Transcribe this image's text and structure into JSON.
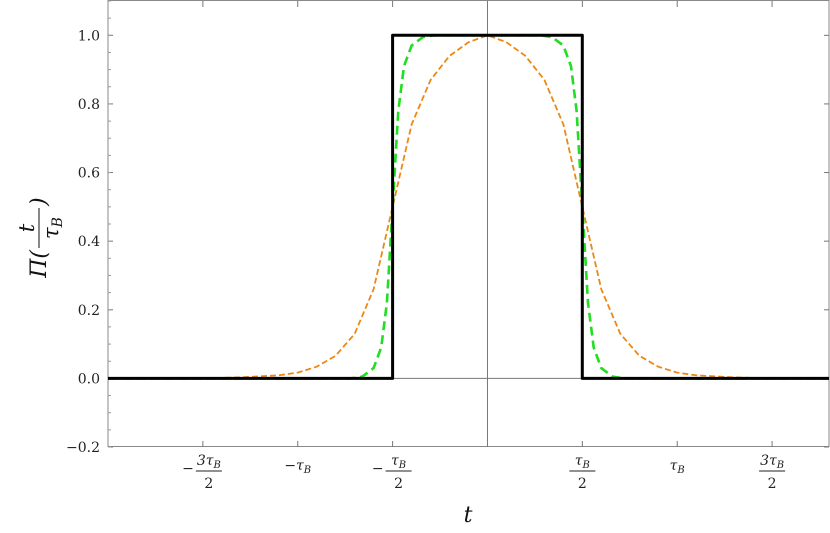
{
  "chart_data": {
    "type": "line",
    "title": "",
    "xlabel": "t",
    "ylabel": "Π(t/τ_B)",
    "ylabel_parts": {
      "prefix": "Π(",
      "numerator": "t",
      "denominator": "τ",
      "denominator_sub": "B",
      "suffix": ")"
    },
    "xlim": [
      -2.0,
      1.8
    ],
    "ylim": [
      -0.2,
      1.1
    ],
    "grid": false,
    "legend": "none",
    "x_ticks": [
      {
        "value": -1.5,
        "sign": "−",
        "num": "3τ",
        "sub": "B",
        "den": "2"
      },
      {
        "value": -1.0,
        "sign": "−",
        "text": "τ",
        "sub": "B"
      },
      {
        "value": -0.5,
        "sign": "−",
        "num": "τ",
        "sub": "B",
        "den": "2"
      },
      {
        "value": 0.5,
        "sign": "",
        "num": "τ",
        "sub": "B",
        "den": "2"
      },
      {
        "value": 1.0,
        "sign": "",
        "text": "τ",
        "sub": "B"
      },
      {
        "value": 1.5,
        "sign": "",
        "num": "3τ",
        "sub": "B",
        "den": "2"
      }
    ],
    "y_ticks": [
      "−0.2",
      "0.0",
      "0.2",
      "0.4",
      "0.6",
      "0.8",
      "1.0"
    ],
    "y_tick_values": [
      -0.2,
      0.0,
      0.2,
      0.4,
      0.6,
      0.8,
      1.0
    ],
    "series": [
      {
        "style": "solid",
        "color": "#000000",
        "x": [
          -2.0,
          -0.5,
          -0.5,
          0.5,
          0.5,
          1.8
        ],
        "y": [
          0,
          0,
          1,
          1,
          0,
          0
        ]
      },
      {
        "style": "dashed",
        "color": "#22dd22",
        "x": [
          -2.0,
          -0.72,
          -0.66,
          -0.6,
          -0.56,
          -0.53,
          -0.5,
          -0.47,
          -0.44,
          -0.4,
          -0.34,
          -0.28,
          0.28,
          0.34,
          0.4,
          0.44,
          0.47,
          0.5,
          0.53,
          0.56,
          0.6,
          0.66,
          0.72,
          1.8
        ],
        "y": [
          0,
          0,
          0.005,
          0.03,
          0.09,
          0.22,
          0.5,
          0.78,
          0.91,
          0.97,
          0.995,
          1,
          1,
          0.995,
          0.97,
          0.91,
          0.78,
          0.5,
          0.22,
          0.09,
          0.03,
          0.005,
          0,
          0
        ]
      },
      {
        "style": "dashed",
        "color": "#ee8811",
        "x": [
          -2.0,
          -1.5,
          -1.3,
          -1.1,
          -1.0,
          -0.9,
          -0.8,
          -0.7,
          -0.6,
          -0.5,
          -0.4,
          -0.3,
          -0.2,
          -0.1,
          0.0,
          0.1,
          0.2,
          0.3,
          0.4,
          0.5,
          0.6,
          0.7,
          0.8,
          0.9,
          1.0,
          1.1,
          1.3,
          1.5,
          1.8
        ],
        "y": [
          0,
          0.0,
          0.003,
          0.009,
          0.017,
          0.034,
          0.066,
          0.13,
          0.26,
          0.5,
          0.74,
          0.87,
          0.94,
          0.98,
          1.0,
          0.98,
          0.94,
          0.87,
          0.74,
          0.5,
          0.26,
          0.13,
          0.066,
          0.034,
          0.017,
          0.009,
          0.003,
          0.0,
          0
        ]
      }
    ]
  }
}
